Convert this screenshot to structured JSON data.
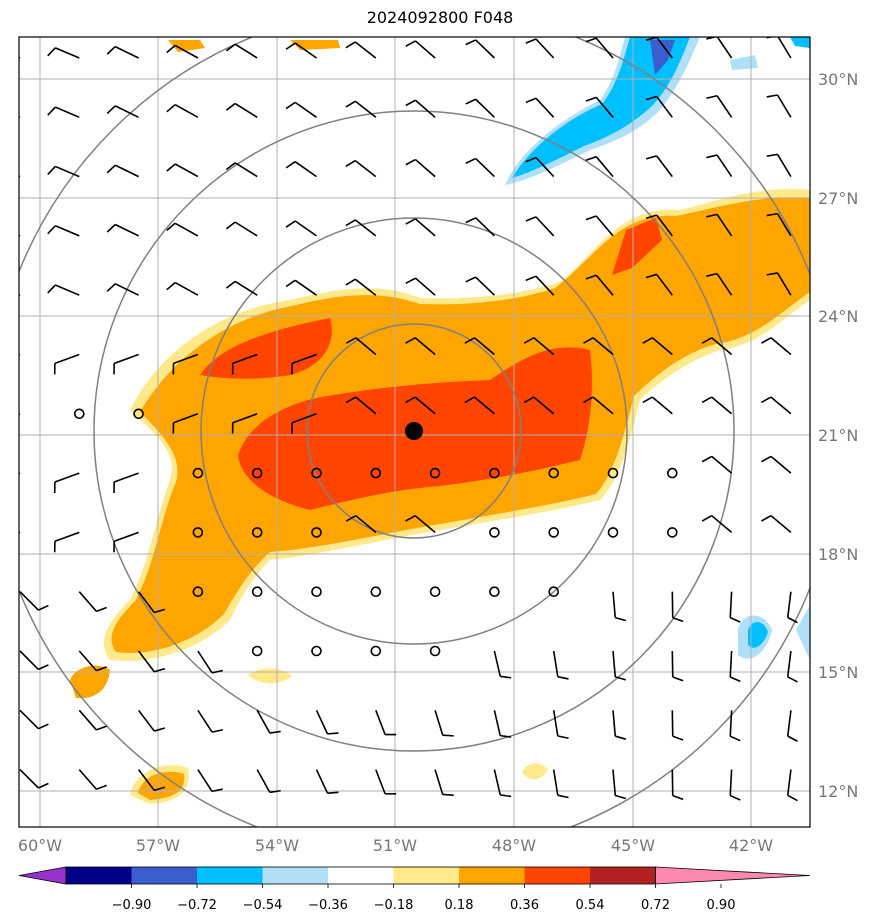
{
  "title": "2024092800 F048",
  "map": {
    "lon_labels": [
      "60°W",
      "57°W",
      "54°W",
      "51°W",
      "48°W",
      "45°W",
      "42°W"
    ],
    "lat_labels": [
      "30°N",
      "27°N",
      "24°N",
      "21°N",
      "18°N",
      "15°N",
      "12°N"
    ],
    "lon_values": [
      -60,
      -57,
      -54,
      -51,
      -48,
      -45,
      -42
    ],
    "lat_values": [
      30,
      27,
      24,
      21,
      18,
      15,
      12
    ],
    "center": {
      "lon": -50.6,
      "lat": 21.1
    },
    "range_rings": 4,
    "field": "vorticity-like shaded field with wind barbs"
  },
  "colorbar": {
    "levels": [
      "−0.90",
      "−0.72",
      "−0.54",
      "−0.36",
      "−0.18",
      "0.18",
      "0.36",
      "0.54",
      "0.72",
      "0.90"
    ],
    "colors": [
      "#9932cc",
      "#00008b",
      "#3a5fcd",
      "#00bfff",
      "#b0e0f8",
      "#ffffff",
      "#ffe98a",
      "#ffa500",
      "#ff4500",
      "#b22222",
      "#ff88b0"
    ]
  }
}
